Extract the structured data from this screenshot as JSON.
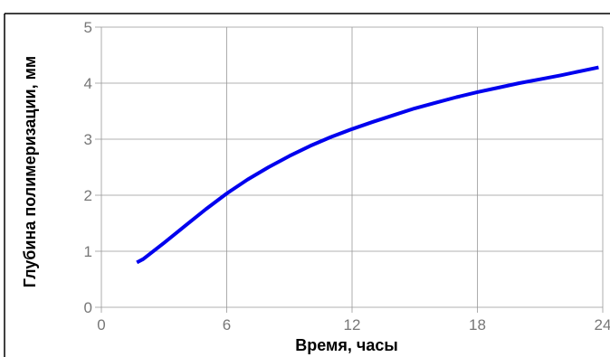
{
  "chart_data": {
    "type": "line",
    "xlabel": "Время, часы",
    "ylabel": "Глубина полимеризации, мм",
    "xlim": [
      0,
      24
    ],
    "ylim": [
      0,
      5
    ],
    "x_ticks": [
      0,
      6,
      12,
      18,
      24
    ],
    "y_ticks": [
      0,
      1,
      2,
      3,
      4,
      5
    ],
    "x_tick_labels": [
      "0",
      "6",
      "12",
      "18",
      "24"
    ],
    "y_tick_labels": [
      "0",
      "1",
      "2",
      "3",
      "4",
      "5"
    ],
    "grid": true,
    "colors": {
      "series": "#0000ee",
      "grid": "#999999",
      "frame": "#000000",
      "ticks_text": "#777777"
    },
    "series": [
      {
        "x": [
          1.7,
          2,
          3,
          4,
          5,
          6,
          7,
          8,
          9,
          10,
          11,
          12,
          13,
          14,
          15,
          16,
          17,
          18,
          19,
          20,
          21,
          22,
          23,
          23.8
        ],
        "y": [
          0.8,
          0.86,
          1.15,
          1.45,
          1.75,
          2.03,
          2.28,
          2.5,
          2.7,
          2.88,
          3.04,
          3.18,
          3.31,
          3.43,
          3.55,
          3.65,
          3.75,
          3.84,
          3.92,
          4.0,
          4.07,
          4.14,
          4.22,
          4.28
        ]
      }
    ]
  }
}
